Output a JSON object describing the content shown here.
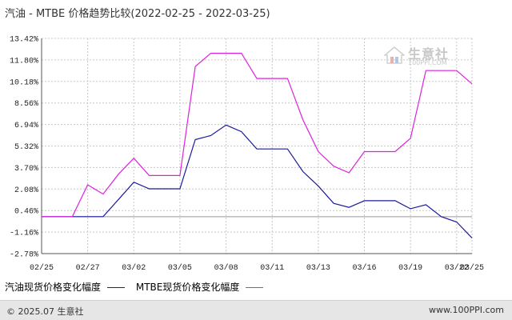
{
  "colors": {
    "gasoline": "#1a1aa0",
    "mtbe": "#dd22dd",
    "grid": "#c8c8c8",
    "axis": "#555555",
    "zero_line": "#999999"
  },
  "watermark": {
    "icon": "house-logo-icon",
    "name": "生意社",
    "domain": "100PPI.COM"
  },
  "footer": {
    "left": "© 2025.07 生意社",
    "right": "www.100PPI.com"
  },
  "chart_data": {
    "type": "line",
    "title": "汽油 - MTBE 价格趋势比较(2022-02-25 - 2022-03-25)",
    "xlabel": "",
    "ylabel": "",
    "x": [
      "02-25",
      "02-26",
      "02-27",
      "02-28",
      "03-01",
      "03-02",
      "03-03",
      "03-04",
      "03-05",
      "03-06",
      "03-07",
      "03-08",
      "03-09",
      "03-10",
      "03-11",
      "03-12",
      "03-13",
      "03-14",
      "03-15",
      "03-16",
      "03-17",
      "03-18",
      "03-19",
      "03-20",
      "03-21",
      "03-22",
      "03-23",
      "03-24",
      "03-25"
    ],
    "x_tick_labels": [
      "02/25",
      "02/27",
      "03/02",
      "03/05",
      "03/08",
      "03/11",
      "03/13",
      "03/16",
      "03/19",
      "03/22",
      "03/25"
    ],
    "x_tick_index": [
      0,
      3,
      6,
      9,
      12,
      15,
      18,
      21,
      24,
      27,
      28
    ],
    "y_ticks": [
      "13.42%",
      "11.80%",
      "10.18%",
      "8.56%",
      "6.94%",
      "5.32%",
      "3.70%",
      "2.08%",
      "0.46%",
      "-1.16%",
      "-2.78%"
    ],
    "ylim": [
      -2.78,
      13.42
    ],
    "grid": true,
    "legend_position": "bottom-left",
    "series": [
      {
        "name": "汽油现货价格变化幅度",
        "color": "#1a1aa0",
        "values": [
          0,
          0,
          0,
          0,
          0,
          1.3,
          2.6,
          2.1,
          2.1,
          2.1,
          5.8,
          6.1,
          6.9,
          6.4,
          5.1,
          5.1,
          5.1,
          3.4,
          2.3,
          1.0,
          0.7,
          1.2,
          1.2,
          1.2,
          0.6,
          0.9,
          0.0,
          -0.4,
          -1.6
        ]
      },
      {
        "name": "MTBE现货价格变化幅度",
        "color": "#dd22dd",
        "values": [
          0,
          0,
          0,
          2.4,
          1.7,
          3.2,
          4.4,
          3.1,
          3.1,
          3.1,
          11.3,
          12.3,
          12.3,
          12.3,
          10.4,
          10.4,
          10.4,
          7.3,
          4.9,
          3.8,
          3.3,
          4.9,
          4.9,
          4.9,
          5.9,
          11.0,
          11.0,
          11.0,
          10.0
        ]
      }
    ]
  }
}
